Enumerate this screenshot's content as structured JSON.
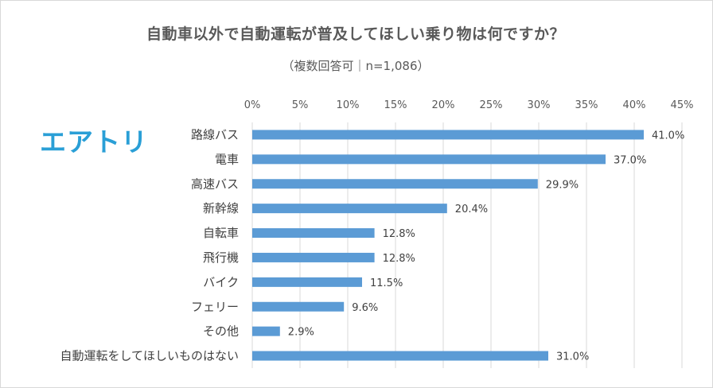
{
  "logo_text": "エアトリ",
  "chart_data": {
    "type": "bar",
    "orientation": "horizontal",
    "title": "自動車以外で自動運転が普及してほしい乗り物は何ですか？",
    "subtitle": "（複数回答可｜n=1,086）",
    "categories": [
      "路線バス",
      "電車",
      "高速バス",
      "新幹線",
      "自転車",
      "飛行機",
      "バイク",
      "フェリー",
      "その他",
      "自動運転をしてほしいものはない"
    ],
    "values": [
      41.0,
      37.0,
      29.9,
      20.4,
      12.8,
      12.8,
      11.5,
      9.6,
      2.9,
      31.0
    ],
    "value_labels": [
      "41.0%",
      "37.0%",
      "29.9%",
      "20.4%",
      "12.8%",
      "12.8%",
      "11.5%",
      "9.6%",
      "2.9%",
      "31.0%"
    ],
    "x_ticks": [
      "0%",
      "5%",
      "10%",
      "15%",
      "20%",
      "25%",
      "30%",
      "35%",
      "40%",
      "45%"
    ],
    "xlim": [
      0,
      45
    ],
    "tick_step": 5,
    "grid": true,
    "bar_color": "#5b9bd5",
    "grid_color": "#d9d9d9"
  }
}
